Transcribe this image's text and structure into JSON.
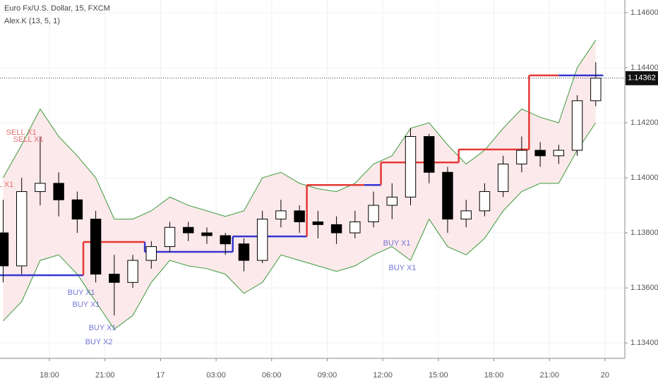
{
  "chart_data": {
    "type": "candlestick",
    "title": "Euro Fx/U.S. Dollar, 15, FXCM",
    "subtitle": "Alex.K (13, 5, 1)",
    "x": [
      -2.5,
      -1.5,
      -0.5,
      0.5,
      1.5,
      2.5,
      3.5,
      4.5,
      5.5,
      6.5,
      7.5,
      8.5,
      9.5,
      10.5,
      11.5,
      12.5,
      13.5,
      14.5,
      15.5,
      16.5,
      17.5,
      18.5,
      19.5,
      20.5,
      21.5,
      22.5,
      23.5,
      24.5,
      25.5,
      26.5,
      27.5,
      28.5,
      29.5
    ],
    "open": [
      1.138,
      1.1368,
      1.1395,
      1.1398,
      1.1392,
      1.1385,
      1.1365,
      1.1362,
      1.137,
      1.1375,
      1.1382,
      1.138,
      1.1379,
      1.1376,
      1.137,
      1.1385,
      1.1388,
      1.1384,
      1.1383,
      1.138,
      1.1384,
      1.139,
      1.1393,
      1.1415,
      1.1402,
      1.1385,
      1.1388,
      1.1395,
      1.1405,
      1.141,
      1.1408,
      1.141,
      1.1428
    ],
    "high": [
      1.1392,
      1.14,
      1.1415,
      1.1402,
      1.1395,
      1.1388,
      1.1372,
      1.1372,
      1.1377,
      1.1384,
      1.1384,
      1.1382,
      1.138,
      1.1378,
      1.1388,
      1.1392,
      1.139,
      1.1388,
      1.1386,
      1.1388,
      1.1395,
      1.1398,
      1.1418,
      1.1416,
      1.1404,
      1.1392,
      1.1398,
      1.1408,
      1.1415,
      1.1413,
      1.1412,
      1.143,
      1.1442
    ],
    "low": [
      1.1362,
      1.1365,
      1.139,
      1.1386,
      1.138,
      1.1362,
      1.135,
      1.136,
      1.1367,
      1.1373,
      1.1377,
      1.1376,
      1.1372,
      1.1366,
      1.1369,
      1.1382,
      1.138,
      1.1378,
      1.1376,
      1.1378,
      1.1382,
      1.1385,
      1.139,
      1.1398,
      1.138,
      1.1382,
      1.1386,
      1.1393,
      1.1402,
      1.1404,
      1.1405,
      1.1408,
      1.1426
    ],
    "close": [
      1.1368,
      1.1395,
      1.1398,
      1.1392,
      1.1385,
      1.1365,
      1.1362,
      1.137,
      1.1375,
      1.1382,
      1.138,
      1.1379,
      1.1376,
      1.137,
      1.1385,
      1.1388,
      1.1384,
      1.1383,
      1.138,
      1.1384,
      1.139,
      1.1393,
      1.1415,
      1.1402,
      1.1385,
      1.1388,
      1.1395,
      1.1405,
      1.141,
      1.1408,
      1.141,
      1.1428,
      1.14362
    ],
    "upper_band": [
      1.14,
      1.1412,
      1.1425,
      1.1415,
      1.1408,
      1.14,
      1.1385,
      1.1385,
      1.1388,
      1.1393,
      1.139,
      1.1388,
      1.1386,
      1.1388,
      1.14,
      1.1402,
      1.1398,
      1.1396,
      1.1395,
      1.1398,
      1.1405,
      1.1408,
      1.1418,
      1.142,
      1.1412,
      1.1405,
      1.141,
      1.1418,
      1.1425,
      1.1422,
      1.142,
      1.144,
      1.145
    ],
    "lower_band": [
      1.1348,
      1.1355,
      1.137,
      1.1372,
      1.1365,
      1.1355,
      1.1345,
      1.135,
      1.1362,
      1.137,
      1.1368,
      1.1367,
      1.1365,
      1.1358,
      1.1362,
      1.1372,
      1.137,
      1.1368,
      1.1366,
      1.1368,
      1.1372,
      1.1375,
      1.137,
      1.1385,
      1.1375,
      1.1372,
      1.1378,
      1.1388,
      1.1395,
      1.1398,
      1.1398,
      1.141,
      1.142
    ],
    "band_color": "#3a9a3a",
    "band_fill": "#fbe3e6",
    "up_color": "#ffffff",
    "down_color": "#000000",
    "steps": [
      {
        "start": -2.67,
        "end": 1.83,
        "value": 1.13646,
        "color": "#3535d0"
      },
      {
        "start": 1.83,
        "end": 5.15,
        "value": 1.13767,
        "color": "#e53935"
      },
      {
        "start": 5.15,
        "end": 9.9,
        "value": 1.13731,
        "color": "#3535d0"
      },
      {
        "start": 9.9,
        "end": 13.9,
        "value": 1.13787,
        "color": "#3535d0"
      },
      {
        "start": 13.9,
        "end": 17.0,
        "value": 1.13974,
        "color": "#e53935"
      },
      {
        "start": 17.0,
        "end": 17.9,
        "value": 1.13974,
        "color": "#3535d0"
      },
      {
        "start": 17.9,
        "end": 22.1,
        "value": 1.14056,
        "color": "#e53935"
      },
      {
        "start": 22.1,
        "end": 25.9,
        "value": 1.14103,
        "color": "#e53935"
      },
      {
        "start": 25.9,
        "end": 27.5,
        "value": 1.14372,
        "color": "#e53935"
      },
      {
        "start": 27.5,
        "end": 29.9,
        "value": 1.14372,
        "color": "#3535d0"
      }
    ],
    "annotations": [
      {
        "text": "SELL X1",
        "x": -1.52,
        "y": 1.14164,
        "color": "#e57373"
      },
      {
        "text": "SELL X1",
        "x": -1.14,
        "y": 1.14138,
        "color": "#e57373"
      },
      {
        "text": "L X1",
        "x": -2.36,
        "y": 1.13974,
        "color": "#e57373"
      },
      {
        "text": "BUY X1",
        "x": 1.72,
        "y": 1.13582,
        "color": "#7777d8"
      },
      {
        "text": "BUY X1",
        "x": 1.98,
        "y": 1.13538,
        "color": "#7777d8"
      },
      {
        "text": "BUY X1",
        "x": 2.86,
        "y": 1.13454,
        "color": "#7777d8"
      },
      {
        "text": "BUY X2",
        "x": 2.67,
        "y": 1.13403,
        "color": "#7777d8"
      },
      {
        "text": "BUY X1",
        "x": 18.76,
        "y": 1.13762,
        "color": "#7777d8"
      },
      {
        "text": "BUY X1",
        "x": 19.06,
        "y": 1.13672,
        "color": "#7777d8"
      }
    ],
    "last_price": 1.14362,
    "xlim": [
      -2.67,
      31.07
    ],
    "ylim": [
      1.13344,
      1.14646
    ],
    "xticks": [
      {
        "value": 0,
        "label": "18:00"
      },
      {
        "value": 3,
        "label": "21:00"
      },
      {
        "value": 6,
        "label": "17"
      },
      {
        "value": 9,
        "label": "03:00"
      },
      {
        "value": 12,
        "label": "06:00"
      },
      {
        "value": 15,
        "label": "09:00"
      },
      {
        "value": 18,
        "label": "12:00"
      },
      {
        "value": 21,
        "label": "15:00"
      },
      {
        "value": 24,
        "label": "18:00"
      },
      {
        "value": 27,
        "label": "21:00"
      },
      {
        "value": 30,
        "label": "20"
      }
    ],
    "yticks": [
      {
        "value": 1.134,
        "label": "1.13400"
      },
      {
        "value": 1.136,
        "label": "1.13600"
      },
      {
        "value": 1.138,
        "label": "1.13800"
      },
      {
        "value": 1.14,
        "label": "1.14000"
      },
      {
        "value": 1.142,
        "label": "1.14200"
      },
      {
        "value": 1.144,
        "label": "1.14400"
      },
      {
        "value": 1.146,
        "label": "1.14600"
      }
    ],
    "grid": true
  }
}
